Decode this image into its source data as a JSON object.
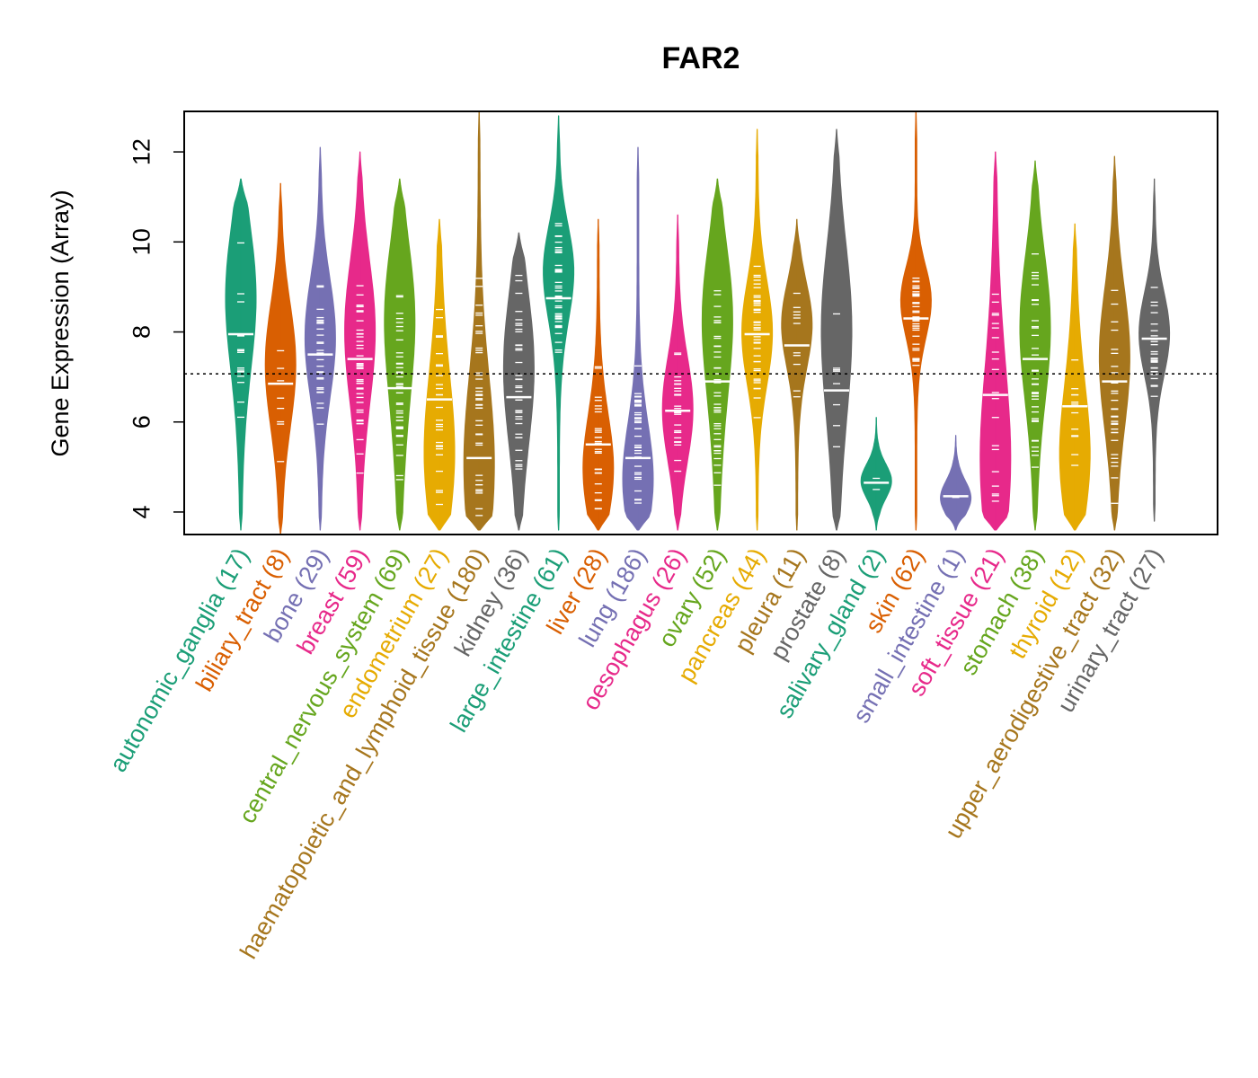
{
  "chart_data": {
    "type": "violin",
    "title": "FAR2",
    "ylabel": "Gene Expression (Array)",
    "xlabel": "",
    "ylim": [
      3.5,
      12.9
    ],
    "yticks": [
      4,
      6,
      8,
      10,
      12
    ],
    "reference_line": 7.07,
    "grid": false,
    "categories": [
      {
        "name": "autonomic_ganglia",
        "n": 17,
        "label": "autonomic_ganglia (17)",
        "color": "#1B9E77",
        "median": 7.95,
        "min": 3.6,
        "max": 11.4,
        "q25": 6.4,
        "q75": 9.6,
        "mode": 9.0
      },
      {
        "name": "biliary_tract",
        "n": 8,
        "label": "biliary_tract (8)",
        "color": "#D95F02",
        "median": 6.85,
        "min": 3.5,
        "max": 11.3,
        "q25": 5.0,
        "q75": 7.8,
        "mode": 7.4
      },
      {
        "name": "bone",
        "n": 29,
        "label": "bone (29)",
        "color": "#7570B3",
        "median": 7.5,
        "min": 3.6,
        "max": 12.1,
        "q25": 6.2,
        "q75": 8.9,
        "mode": 8.0
      },
      {
        "name": "breast",
        "n": 59,
        "label": "breast (59)",
        "color": "#E7298A",
        "median": 7.4,
        "min": 3.6,
        "max": 12.0,
        "q25": 5.6,
        "q75": 8.8,
        "mode": 8.2
      },
      {
        "name": "central_nervous_system",
        "n": 69,
        "label": "central_nervous_system (69)",
        "color": "#66A61E",
        "median": 6.75,
        "min": 3.6,
        "max": 11.4,
        "q25": 5.3,
        "q75": 8.6,
        "mode": 8.6
      },
      {
        "name": "endometrium",
        "n": 27,
        "label": "endometrium (27)",
        "color": "#E6AB02",
        "median": 6.5,
        "min": 3.6,
        "max": 10.5,
        "q25": 4.8,
        "q75": 8.2,
        "mode": 5.0
      },
      {
        "name": "haematopoietic_and_lymphoid_tissue",
        "n": 180,
        "label": "haematopoietic_and_lymphoid_tissue (180)",
        "color": "#A6761D",
        "median": 5.2,
        "min": 3.6,
        "max": 12.9,
        "q25": 4.7,
        "q75": 8.8,
        "mode": 5.0
      },
      {
        "name": "kidney",
        "n": 36,
        "label": "kidney (36)",
        "color": "#666666",
        "median": 6.55,
        "min": 3.6,
        "max": 10.2,
        "q25": 5.1,
        "q75": 8.5,
        "mode": 7.4
      },
      {
        "name": "large_intestine",
        "n": 61,
        "label": "large_intestine (61)",
        "color": "#1B9E77",
        "median": 8.75,
        "min": 3.6,
        "max": 12.8,
        "q25": 8.0,
        "q75": 10.1,
        "mode": 9.5
      },
      {
        "name": "liver",
        "n": 28,
        "label": "liver (28)",
        "color": "#D95F02",
        "median": 5.5,
        "min": 3.6,
        "max": 10.5,
        "q25": 4.4,
        "q75": 6.8,
        "mode": 4.8
      },
      {
        "name": "lung",
        "n": 186,
        "label": "lung (186)",
        "color": "#7570B3",
        "median": 5.2,
        "min": 3.6,
        "max": 12.1,
        "q25": 4.4,
        "q75": 6.9,
        "mode": 4.6
      },
      {
        "name": "oesophagus",
        "n": 26,
        "label": "oesophagus (26)",
        "color": "#E7298A",
        "median": 6.25,
        "min": 3.6,
        "max": 10.6,
        "q25": 5.1,
        "q75": 7.5,
        "mode": 6.3
      },
      {
        "name": "ovary",
        "n": 52,
        "label": "ovary (52)",
        "color": "#66A61E",
        "median": 6.9,
        "min": 3.6,
        "max": 11.4,
        "q25": 5.1,
        "q75": 8.3,
        "mode": 8.6
      },
      {
        "name": "pancreas",
        "n": 44,
        "label": "pancreas (44)",
        "color": "#E6AB02",
        "median": 7.95,
        "min": 3.6,
        "max": 12.5,
        "q25": 6.6,
        "q75": 9.0,
        "mode": 8.0
      },
      {
        "name": "pleura",
        "n": 11,
        "label": "pleura (11)",
        "color": "#A6761D",
        "median": 7.7,
        "min": 3.6,
        "max": 10.5,
        "q25": 6.7,
        "q75": 8.6,
        "mode": 8.3
      },
      {
        "name": "prostate",
        "n": 8,
        "label": "prostate (8)",
        "color": "#666666",
        "median": 6.7,
        "min": 3.6,
        "max": 12.5,
        "q25": 4.6,
        "q75": 8.4,
        "mode": 8.4
      },
      {
        "name": "salivary_gland",
        "n": 2,
        "label": "salivary_gland (2)",
        "color": "#1B9E77",
        "median": 4.65,
        "min": 3.6,
        "max": 6.1,
        "q25": 4.3,
        "q75": 5.0,
        "mode": 4.7
      },
      {
        "name": "skin",
        "n": 62,
        "label": "skin (62)",
        "color": "#D95F02",
        "median": 8.3,
        "min": 3.6,
        "max": 12.9,
        "q25": 7.6,
        "q75": 9.2,
        "mode": 8.8
      },
      {
        "name": "small_intestine",
        "n": 1,
        "label": "small_intestine (1)",
        "color": "#7570B3",
        "median": 4.35,
        "min": 3.6,
        "max": 5.7,
        "q25": 4.2,
        "q75": 4.5,
        "mode": 4.3
      },
      {
        "name": "soft_tissue",
        "n": 21,
        "label": "soft_tissue (21)",
        "color": "#E7298A",
        "median": 6.6,
        "min": 3.6,
        "max": 12.0,
        "q25": 4.7,
        "q75": 8.7,
        "mode": 4.8
      },
      {
        "name": "stomach",
        "n": 38,
        "label": "stomach (38)",
        "color": "#66A61E",
        "median": 7.4,
        "min": 3.6,
        "max": 11.8,
        "q25": 5.6,
        "q75": 8.9,
        "mode": 8.3
      },
      {
        "name": "thyroid",
        "n": 12,
        "label": "thyroid (12)",
        "color": "#E6AB02",
        "median": 6.35,
        "min": 3.6,
        "max": 10.4,
        "q25": 4.8,
        "q75": 7.8,
        "mode": 5.0
      },
      {
        "name": "upper_aerodigestive_tract",
        "n": 32,
        "label": "upper_aerodigestive_tract (32)",
        "color": "#A6761D",
        "median": 6.9,
        "min": 3.6,
        "max": 11.9,
        "q25": 5.0,
        "q75": 8.2,
        "mode": 7.6
      },
      {
        "name": "urinary_tract",
        "n": 27,
        "label": "urinary_tract (27)",
        "color": "#666666",
        "median": 7.85,
        "min": 3.8,
        "max": 11.4,
        "q25": 6.8,
        "q75": 8.7,
        "mode": 8.0
      }
    ]
  }
}
